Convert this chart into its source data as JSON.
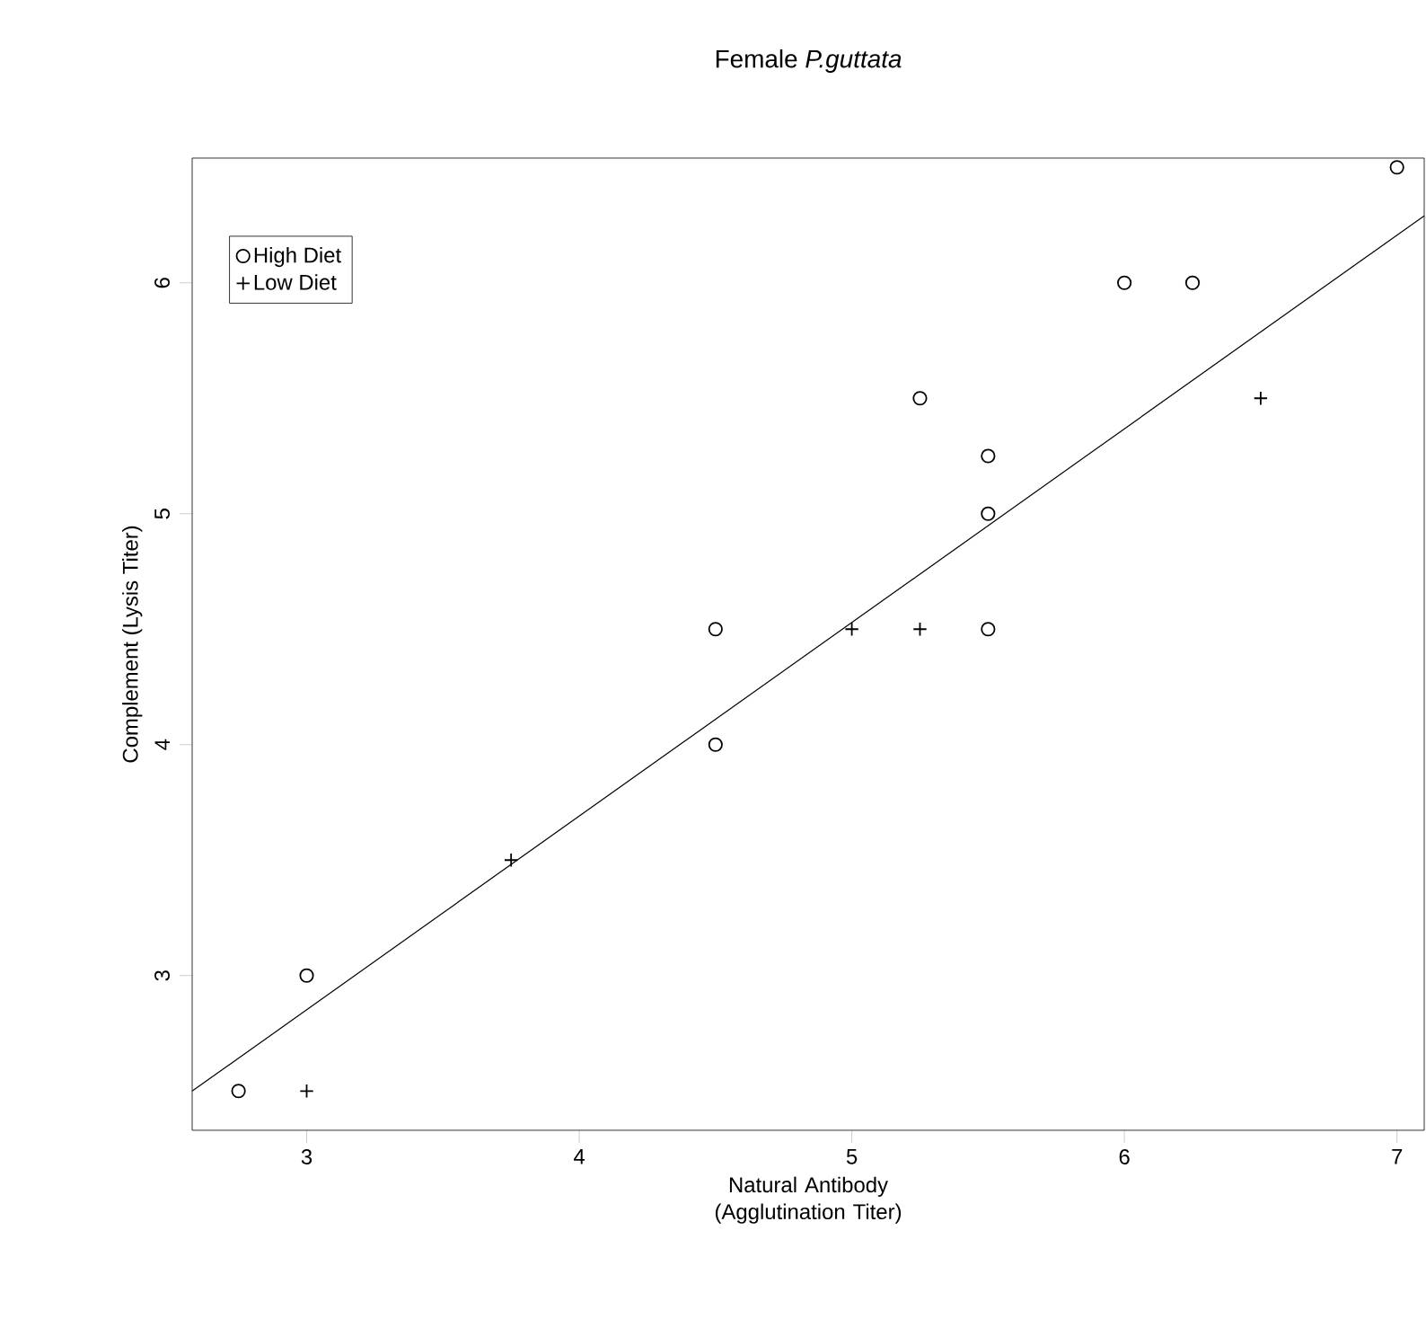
{
  "chart_data": {
    "type": "scatter",
    "title": "Female *P.guttata*",
    "xlabel": "Natural Antibody (Agglutination Titer)",
    "ylabel": "Complement (Lysis Titer)",
    "xlim": [
      2.58,
      7.1
    ],
    "ylim": [
      2.33,
      6.54
    ],
    "xticks": [
      3,
      4,
      5,
      6,
      7
    ],
    "yticks": [
      3,
      4,
      5,
      6
    ],
    "grid": false,
    "legend": "top left",
    "series": [
      {
        "type": "line",
        "color": "#000000",
        "marker": "none",
        "line_style": "solid",
        "x": [
          2.58,
          7.1
        ],
        "values": [
          2.5,
          6.29
        ]
      },
      {
        "name": "High Diet",
        "color": "#000000",
        "marker": "circle",
        "x": [
          2.75,
          3,
          4.5,
          4.5,
          5.25,
          5.5,
          5.5,
          5.5,
          6,
          6.25,
          7
        ],
        "values": [
          2.5,
          3,
          4.5,
          4,
          5.5,
          5.25,
          5,
          4.5,
          6,
          6,
          6.5
        ]
      },
      {
        "name": "Low Diet",
        "color": "#000000",
        "marker": "cross",
        "x": [
          3,
          3.75,
          5,
          5.25,
          6.5
        ],
        "values": [
          2.5,
          3.5,
          4.5,
          4.5,
          5.5
        ]
      }
    ]
  }
}
